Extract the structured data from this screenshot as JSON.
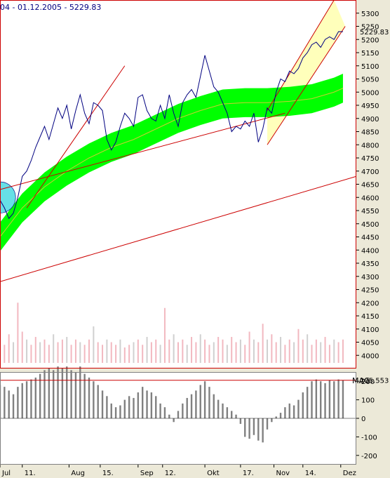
{
  "header": {
    "text": "04 - 01.12.2005 - 5229.83"
  },
  "last_value_label": "5229.83",
  "mag_label": "MAG",
  "mag_value_label": "205.553",
  "colors": {
    "price_line": "#000080",
    "band": "#00FF00",
    "band_center": "#CCCC33",
    "trend_lines": "#CC0000",
    "channel_fill": "#FFFFAA",
    "circle": "#66E0E6",
    "volume": "#F2B8C0",
    "volume_alt": "#D0D0D0",
    "mag_bars": "#808080",
    "frame": "#CC0000"
  },
  "chart_data": [
    {
      "type": "line",
      "panel": "price",
      "title": "",
      "xlabel": "",
      "ylabel": "",
      "ylim": [
        3950,
        5350
      ],
      "y_ticks": [
        4000,
        4050,
        4100,
        4150,
        4200,
        4250,
        4300,
        4350,
        4400,
        4450,
        4500,
        4550,
        4600,
        4650,
        4700,
        4750,
        4800,
        4850,
        4900,
        4950,
        5000,
        5050,
        5100,
        5150,
        5200,
        5250,
        5300
      ],
      "x_tick_labels": [
        "Jul",
        "11.",
        "Aug",
        "15.",
        "Sep",
        "12.",
        "Okt",
        "17.",
        "Nov",
        "14.",
        "Dez"
      ],
      "x_tick_days": [
        0,
        10,
        31,
        45,
        62,
        73,
        92,
        108,
        123,
        136,
        153
      ],
      "last_value": 5229.83,
      "series": [
        {
          "kind": "price",
          "x": [
            0,
            2,
            4,
            6,
            8,
            10,
            12,
            14,
            16,
            18,
            20,
            22,
            24,
            26,
            28,
            30,
            32,
            34,
            36,
            38,
            40,
            42,
            44,
            46,
            48,
            50,
            52,
            54,
            56,
            58,
            60,
            62,
            64,
            66,
            68,
            70,
            72,
            74,
            76,
            78,
            80,
            82,
            84,
            86,
            88,
            90,
            92,
            94,
            96,
            98,
            100,
            102,
            104,
            106,
            108,
            110,
            112,
            114,
            116,
            118,
            120,
            122,
            124,
            126,
            128,
            130,
            132,
            134,
            136,
            138,
            140,
            142,
            144,
            146,
            148,
            150,
            152,
            154
          ],
          "values": [
            4590,
            4560,
            4520,
            4540,
            4600,
            4680,
            4700,
            4740,
            4790,
            4830,
            4870,
            4820,
            4880,
            4940,
            4900,
            4950,
            4860,
            4930,
            4990,
            4920,
            4880,
            4960,
            4950,
            4930,
            4820,
            4780,
            4810,
            4870,
            4920,
            4900,
            4870,
            4980,
            4990,
            4930,
            4900,
            4890,
            4950,
            4900,
            4990,
            4920,
            4870,
            4960,
            4990,
            5010,
            4980,
            5060,
            5140,
            5080,
            5020,
            5000,
            4960,
            4920,
            4850,
            4870,
            4860,
            4890,
            4870,
            4920,
            4810,
            4860,
            4940,
            4920,
            5000,
            5050,
            5040,
            5080,
            5070,
            5090,
            5130,
            5150,
            5180,
            5190,
            5170,
            5200,
            5210,
            5200,
            5230,
            5229.83
          ]
        },
        {
          "kind": "band_center",
          "x": [
            0,
            10,
            20,
            30,
            40,
            50,
            60,
            70,
            80,
            90,
            100,
            110,
            120,
            130,
            140,
            150,
            154
          ],
          "values": [
            4450,
            4560,
            4640,
            4700,
            4750,
            4790,
            4820,
            4860,
            4900,
            4930,
            4955,
            4960,
            4960,
            4965,
            4975,
            5000,
            5015
          ],
          "band_halfwidth": 55
        }
      ],
      "trend_lines": [
        {
          "from": [
            0,
            4280
          ],
          "to": [
            160,
            4680
          ]
        },
        {
          "from": [
            0,
            4630
          ],
          "to": [
            128,
            4920
          ]
        },
        {
          "from": [
            12,
            4560
          ],
          "to": [
            56,
            5100
          ]
        },
        {
          "from": [
            120,
            4800
          ],
          "to": [
            155,
            5250
          ]
        },
        {
          "from": [
            120,
            4930
          ],
          "to": [
            150,
            5350
          ]
        }
      ],
      "channel_fill_polygon": [
        [
          120,
          4800
        ],
        [
          155,
          5250
        ],
        [
          150,
          5350
        ],
        [
          120,
          4930
        ]
      ],
      "circle": {
        "x": 0,
        "y": 4600,
        "r_days": 7
      }
    },
    {
      "type": "bar",
      "panel": "volume",
      "title": "",
      "x": [
        0,
        2,
        4,
        6,
        8,
        10,
        12,
        14,
        16,
        18,
        20,
        22,
        24,
        26,
        28,
        30,
        32,
        34,
        36,
        38,
        40,
        42,
        44,
        46,
        48,
        50,
        52,
        54,
        56,
        58,
        60,
        62,
        64,
        66,
        68,
        70,
        72,
        74,
        76,
        78,
        80,
        82,
        84,
        86,
        88,
        90,
        92,
        94,
        96,
        98,
        100,
        102,
        104,
        106,
        108,
        110,
        112,
        114,
        116,
        118,
        120,
        122,
        124,
        126,
        128,
        130,
        132,
        134,
        136,
        138,
        140,
        142,
        144,
        146,
        148,
        150,
        152,
        154
      ],
      "values": [
        4060,
        4040,
        4080,
        4050,
        4200,
        4090,
        4060,
        4040,
        4070,
        4050,
        4060,
        4040,
        4080,
        4050,
        4060,
        4070,
        4040,
        4060,
        4050,
        4040,
        4060,
        4110,
        4050,
        4040,
        4060,
        4050,
        4040,
        4060,
        4030,
        4040,
        4050,
        4060,
        4040,
        4070,
        4050,
        4060,
        4040,
        4180,
        4060,
        4080,
        4050,
        4060,
        4040,
        4070,
        4050,
        4080,
        4060,
        4040,
        4050,
        4070,
        4060,
        4040,
        4070,
        4050,
        4060,
        4040,
        4090,
        4060,
        4050,
        4120,
        4060,
        4080,
        4050,
        4070,
        4040,
        4060,
        4050,
        4100,
        4060,
        4080,
        4040,
        4060,
        4050,
        4070,
        4040,
        4060,
        4050,
        4060
      ]
    },
    {
      "type": "bar",
      "panel": "mag",
      "title": "",
      "ylim": [
        -250,
        250
      ],
      "y_ticks": [
        -200,
        -100,
        0,
        100,
        200
      ],
      "last_value": 205.553,
      "x": [
        0,
        2,
        4,
        6,
        8,
        10,
        12,
        14,
        16,
        18,
        20,
        22,
        24,
        26,
        28,
        30,
        32,
        34,
        36,
        38,
        40,
        42,
        44,
        46,
        48,
        50,
        52,
        54,
        56,
        58,
        60,
        62,
        64,
        66,
        68,
        70,
        72,
        74,
        76,
        78,
        80,
        82,
        84,
        86,
        88,
        90,
        92,
        94,
        96,
        98,
        100,
        102,
        104,
        106,
        108,
        110,
        112,
        114,
        116,
        118,
        120,
        122,
        124,
        126,
        128,
        130,
        132,
        134,
        136,
        138,
        140,
        142,
        144,
        146,
        148,
        150,
        152,
        154
      ],
      "values": [
        180,
        170,
        150,
        130,
        170,
        190,
        200,
        210,
        220,
        240,
        260,
        270,
        260,
        280,
        270,
        280,
        260,
        250,
        280,
        240,
        220,
        200,
        180,
        150,
        120,
        80,
        60,
        70,
        100,
        120,
        110,
        140,
        170,
        150,
        140,
        120,
        80,
        60,
        20,
        -20,
        40,
        80,
        110,
        130,
        150,
        180,
        200,
        170,
        130,
        100,
        80,
        60,
        40,
        20,
        -30,
        -100,
        -110,
        -90,
        -120,
        -130,
        -60,
        -20,
        10,
        30,
        60,
        80,
        70,
        100,
        140,
        170,
        200,
        210,
        200,
        190,
        205,
        200,
        210,
        205.553
      ]
    }
  ]
}
